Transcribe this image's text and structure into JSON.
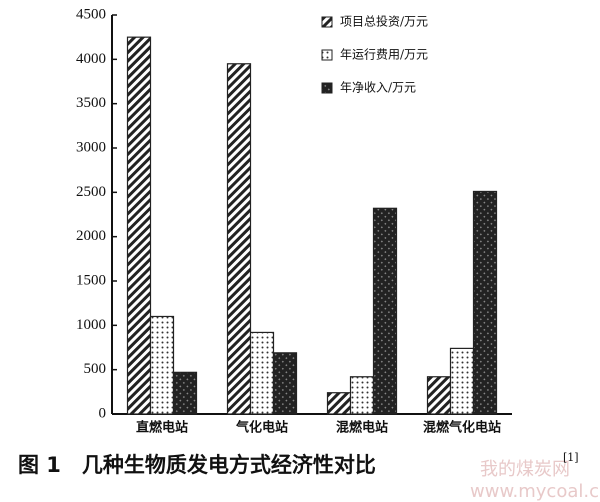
{
  "chart_data": {
    "type": "bar",
    "caption": "图 1　几种生物质发电方式经济性对比",
    "caption_ref": "[1]",
    "watermark": [
      "我的煤炭网",
      "www.mycoal.cn"
    ],
    "categories": [
      "直燃电站",
      "气化电站",
      "混燃电站",
      "混燃气化电站"
    ],
    "series": [
      {
        "name": "项目总投资/万元",
        "color": "#222222",
        "pattern": "hatch",
        "values": [
          4250,
          3950,
          240,
          420
        ]
      },
      {
        "name": "年运行费用/万元",
        "color": "#222222",
        "pattern": "dots",
        "values": [
          1100,
          920,
          420,
          740
        ]
      },
      {
        "name": "年净收入/万元",
        "color": "#222222",
        "pattern": "crosshatch",
        "values": [
          470,
          690,
          2320,
          2510
        ]
      }
    ],
    "ylim": [
      0,
      4500
    ],
    "yticks": [
      0,
      500,
      1000,
      1500,
      2000,
      2500,
      3000,
      3500,
      4000,
      4500
    ],
    "grid": false,
    "legend": "top-right"
  }
}
